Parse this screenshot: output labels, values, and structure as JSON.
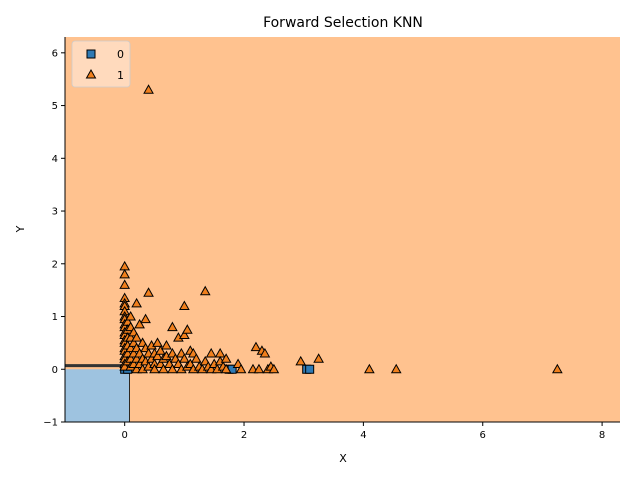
{
  "chart_data": {
    "type": "scatter",
    "title": "Forward Selection KNN",
    "xlabel": "X",
    "ylabel": "Y",
    "xlim": [
      -1.0,
      8.3
    ],
    "ylim": [
      -1.0,
      6.3
    ],
    "xticks": [
      0,
      2,
      4,
      6,
      8
    ],
    "yticks": [
      -1,
      0,
      1,
      2,
      3,
      4,
      5,
      6
    ],
    "grid": false,
    "legend_position": "top-left",
    "decision_regions": [
      {
        "class": "0",
        "color": "#9ec3e0"
      },
      {
        "class": "1",
        "color": "#ffc28f"
      }
    ],
    "series": [
      {
        "name": "0",
        "marker": "square",
        "color": "#2f7ab4",
        "points": [
          [
            0.0,
            0.0
          ],
          [
            0.05,
            0.0
          ],
          [
            1.75,
            0.0
          ],
          [
            1.8,
            0.0
          ],
          [
            3.05,
            0.0
          ],
          [
            3.1,
            0.0
          ]
        ]
      },
      {
        "name": "1",
        "marker": "triangle",
        "color": "#f07f1c",
        "points": [
          [
            0.4,
            5.3
          ],
          [
            0.0,
            1.95
          ],
          [
            0.0,
            1.8
          ],
          [
            0.0,
            1.6
          ],
          [
            0.0,
            1.35
          ],
          [
            0.0,
            1.25
          ],
          [
            0.0,
            1.2
          ],
          [
            0.0,
            1.1
          ],
          [
            0.0,
            1.0
          ],
          [
            0.0,
            0.95
          ],
          [
            0.0,
            0.85
          ],
          [
            0.0,
            0.8
          ],
          [
            0.0,
            0.7
          ],
          [
            0.0,
            0.65
          ],
          [
            0.0,
            0.55
          ],
          [
            0.0,
            0.5
          ],
          [
            0.0,
            0.4
          ],
          [
            0.0,
            0.35
          ],
          [
            0.0,
            0.25
          ],
          [
            0.0,
            0.2
          ],
          [
            0.0,
            0.1
          ],
          [
            0.0,
            0.05
          ],
          [
            0.05,
            0.9
          ],
          [
            0.05,
            0.75
          ],
          [
            0.05,
            0.6
          ],
          [
            0.05,
            0.45
          ],
          [
            0.05,
            0.3
          ],
          [
            0.05,
            0.15
          ],
          [
            0.1,
            1.0
          ],
          [
            0.1,
            0.8
          ],
          [
            0.1,
            0.6
          ],
          [
            0.1,
            0.4
          ],
          [
            0.1,
            0.2
          ],
          [
            0.1,
            0.05
          ],
          [
            0.15,
            0.7
          ],
          [
            0.15,
            0.5
          ],
          [
            0.15,
            0.3
          ],
          [
            0.15,
            0.1
          ],
          [
            0.2,
            1.25
          ],
          [
            0.2,
            0.6
          ],
          [
            0.2,
            0.4
          ],
          [
            0.2,
            0.2
          ],
          [
            0.2,
            0.0
          ],
          [
            0.25,
            0.85
          ],
          [
            0.25,
            0.3
          ],
          [
            0.25,
            0.1
          ],
          [
            0.3,
            0.5
          ],
          [
            0.3,
            0.2
          ],
          [
            0.3,
            0.0
          ],
          [
            0.35,
            0.95
          ],
          [
            0.35,
            0.4
          ],
          [
            0.35,
            0.15
          ],
          [
            0.4,
            1.45
          ],
          [
            0.4,
            0.3
          ],
          [
            0.4,
            0.05
          ],
          [
            0.45,
            0.45
          ],
          [
            0.45,
            0.2
          ],
          [
            0.5,
            0.3
          ],
          [
            0.5,
            0.1
          ],
          [
            0.5,
            0.0
          ],
          [
            0.55,
            0.5
          ],
          [
            0.55,
            0.25
          ],
          [
            0.6,
            0.35
          ],
          [
            0.6,
            0.1
          ],
          [
            0.65,
            0.2
          ],
          [
            0.65,
            0.0
          ],
          [
            0.7,
            0.45
          ],
          [
            0.7,
            0.25
          ],
          [
            0.75,
            0.1
          ],
          [
            0.8,
            0.8
          ],
          [
            0.8,
            0.3
          ],
          [
            0.8,
            0.0
          ],
          [
            0.85,
            0.2
          ],
          [
            0.9,
            0.6
          ],
          [
            0.9,
            0.1
          ],
          [
            0.95,
            0.3
          ],
          [
            0.95,
            0.0
          ],
          [
            1.0,
            0.65
          ],
          [
            1.0,
            1.2
          ],
          [
            1.0,
            0.2
          ],
          [
            1.05,
            0.75
          ],
          [
            1.05,
            0.05
          ],
          [
            1.1,
            0.35
          ],
          [
            1.1,
            0.1
          ],
          [
            1.15,
            0.3
          ],
          [
            1.15,
            0.0
          ],
          [
            1.2,
            0.2
          ],
          [
            1.25,
            0.05
          ],
          [
            1.3,
            0.0
          ],
          [
            1.35,
            1.48
          ],
          [
            1.35,
            0.15
          ],
          [
            1.4,
            0.05
          ],
          [
            1.45,
            0.3
          ],
          [
            1.45,
            0.0
          ],
          [
            1.5,
            0.1
          ],
          [
            1.55,
            0.0
          ],
          [
            1.6,
            0.3
          ],
          [
            1.6,
            0.15
          ],
          [
            1.65,
            0.05
          ],
          [
            1.7,
            0.2
          ],
          [
            1.7,
            0.0
          ],
          [
            1.9,
            0.1
          ],
          [
            1.95,
            0.0
          ],
          [
            2.15,
            0.0
          ],
          [
            2.2,
            0.42
          ],
          [
            2.25,
            0.0
          ],
          [
            2.3,
            0.35
          ],
          [
            2.35,
            0.3
          ],
          [
            2.4,
            0.0
          ],
          [
            2.45,
            0.05
          ],
          [
            2.5,
            0.0
          ],
          [
            2.95,
            0.15
          ],
          [
            3.25,
            0.2
          ],
          [
            4.1,
            0.0
          ],
          [
            4.55,
            0.0
          ],
          [
            7.25,
            0.0
          ]
        ]
      }
    ]
  },
  "legend": {
    "entries": [
      {
        "label": "0",
        "marker": "square"
      },
      {
        "label": "1",
        "marker": "triangle"
      }
    ]
  }
}
